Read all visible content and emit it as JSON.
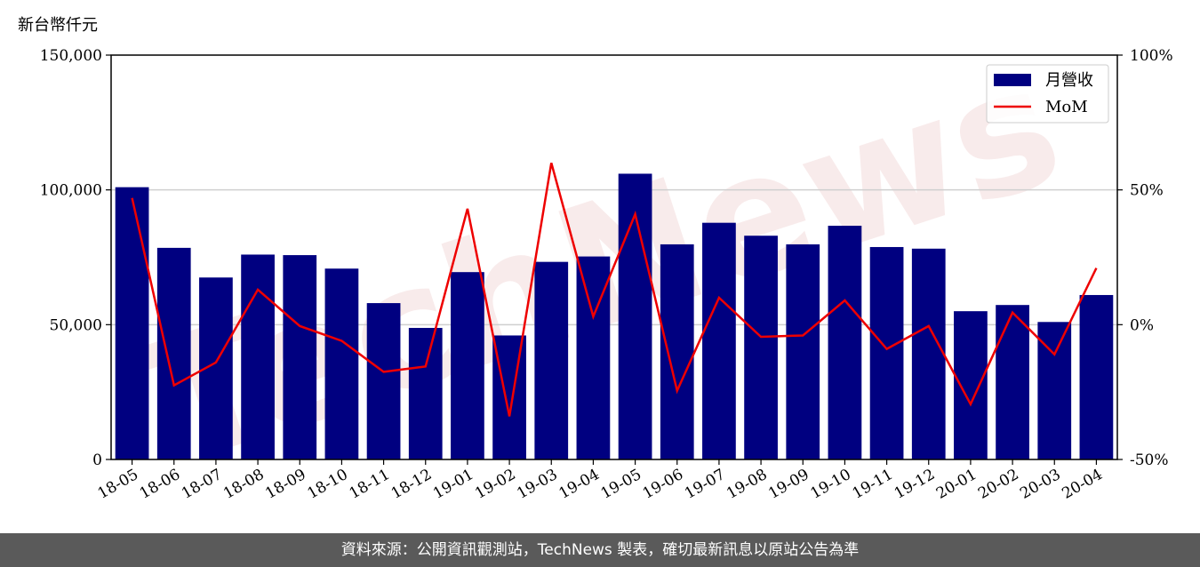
{
  "chart_data": {
    "type": "bar",
    "unit_label": "新台幣仟元",
    "categories": [
      "18-05",
      "18-06",
      "18-07",
      "18-08",
      "18-09",
      "18-10",
      "18-11",
      "18-12",
      "19-01",
      "19-02",
      "19-03",
      "19-04",
      "19-05",
      "19-06",
      "19-07",
      "19-08",
      "19-09",
      "19-10",
      "19-11",
      "19-12",
      "20-01",
      "20-02",
      "20-03",
      "20-04"
    ],
    "series": [
      {
        "name": "月營收",
        "type": "bar",
        "axis": "left",
        "color": "#000080",
        "values": [
          101000,
          78500,
          67500,
          76000,
          75800,
          70800,
          58000,
          48800,
          69500,
          46000,
          73300,
          75300,
          106000,
          79800,
          87800,
          83000,
          79800,
          86700,
          78800,
          78200,
          55000,
          57300,
          51000,
          61000
        ]
      },
      {
        "name": "MoM",
        "type": "line",
        "axis": "right",
        "color": "#ee0000",
        "values": [
          47,
          -22.5,
          -14,
          13,
          -0.5,
          -6,
          -17.5,
          -15.5,
          43,
          -34,
          60,
          3,
          41,
          -24.5,
          10,
          -4.5,
          -4,
          9,
          -9,
          -0.5,
          -29.5,
          4.5,
          -11,
          21
        ]
      }
    ],
    "y_left": {
      "lim": [
        0,
        150000
      ],
      "ticks": [
        "0",
        "50,000",
        "100,000",
        "150,000"
      ],
      "tick_values": [
        0,
        50000,
        100000,
        150000
      ]
    },
    "y_right": {
      "lim": [
        -50,
        100
      ],
      "ticks": [
        "-50%",
        "0%",
        "50%",
        "100%"
      ],
      "tick_values": [
        -50,
        0,
        50,
        100
      ]
    },
    "grid": "horizontal",
    "legend": "top-right",
    "watermark": "TechNews"
  },
  "footer": {
    "text": "資料來源：公開資訊觀測站，TechNews 製表，確切最新訊息以原站公告為準"
  }
}
